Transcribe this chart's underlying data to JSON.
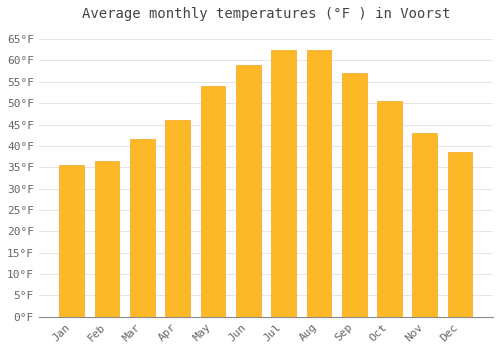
{
  "title": "Average monthly temperatures (°F ) in Voorst",
  "months": [
    "Jan",
    "Feb",
    "Mar",
    "Apr",
    "May",
    "Jun",
    "Jul",
    "Aug",
    "Sep",
    "Oct",
    "Nov",
    "Dec"
  ],
  "values": [
    35.5,
    36.5,
    41.5,
    46,
    54,
    59,
    62.5,
    62.5,
    57,
    50.5,
    43,
    38.5
  ],
  "bar_color_main": "#FDB827",
  "bar_color_edge": "#F5A623",
  "background_color": "#FFFFFF",
  "grid_color": "#E0E0E0",
  "text_color": "#666666",
  "title_color": "#444444",
  "ylim": [
    0,
    68
  ],
  "yticks": [
    0,
    5,
    10,
    15,
    20,
    25,
    30,
    35,
    40,
    45,
    50,
    55,
    60,
    65
  ],
  "ytick_labels": [
    "0°F",
    "5°F",
    "10°F",
    "15°F",
    "20°F",
    "25°F",
    "30°F",
    "35°F",
    "40°F",
    "45°F",
    "50°F",
    "55°F",
    "60°F",
    "65°F"
  ],
  "title_fontsize": 10,
  "tick_fontsize": 8,
  "bar_width": 0.7
}
